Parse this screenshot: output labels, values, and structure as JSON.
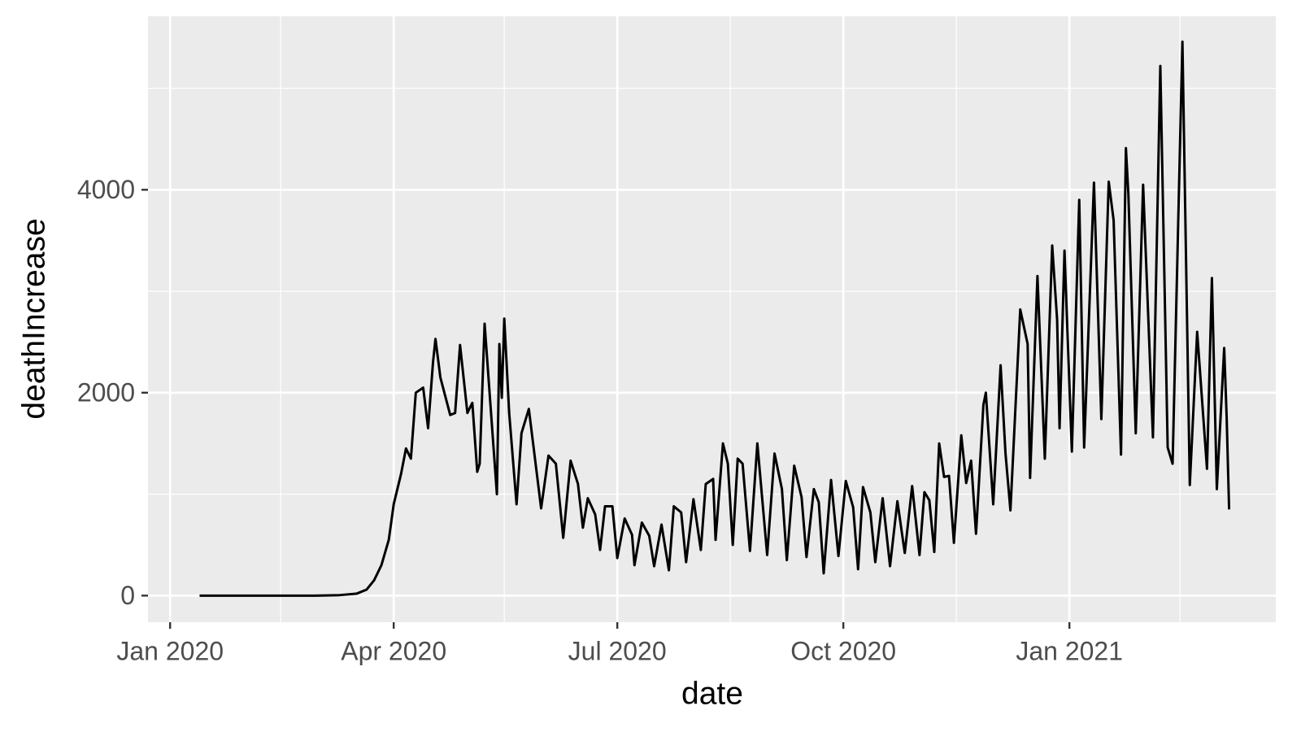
{
  "chart_data": {
    "type": "line",
    "x_label": "date",
    "y_label": "deathIncrease",
    "xlim": [
      "2019-12-23",
      "2021-03-26"
    ],
    "ylim": [
      -262,
      5710
    ],
    "xticks": [
      {
        "value": "2020-01-01",
        "label": "Jan 2020"
      },
      {
        "value": "2020-04-01",
        "label": "Apr 2020"
      },
      {
        "value": "2020-07-01",
        "label": "Jul 2020"
      },
      {
        "value": "2020-10-01",
        "label": "Oct 2020"
      },
      {
        "value": "2021-01-01",
        "label": "Jan 2021"
      }
    ],
    "xminor": [
      "2020-02-15",
      "2020-05-16",
      "2020-08-16",
      "2020-11-16",
      "2021-02-15"
    ],
    "yticks": [
      0,
      2000,
      4000
    ],
    "yminor": [
      1000,
      3000,
      5000
    ],
    "grid": true,
    "x": [
      "2020-01-13",
      "2020-02-29",
      "2020-03-10",
      "2020-03-17",
      "2020-03-21",
      "2020-03-24",
      "2020-03-27",
      "2020-03-30",
      "2020-04-01",
      "2020-04-04",
      "2020-04-06",
      "2020-04-08",
      "2020-04-10",
      "2020-04-13",
      "2020-04-15",
      "2020-04-17",
      "2020-04-18",
      "2020-04-20",
      "2020-04-24",
      "2020-04-26",
      "2020-04-28",
      "2020-05-01",
      "2020-05-03",
      "2020-05-05",
      "2020-05-06",
      "2020-05-08",
      "2020-05-13",
      "2020-05-14",
      "2020-05-15",
      "2020-05-16",
      "2020-05-18",
      "2020-05-21",
      "2020-05-23",
      "2020-05-26",
      "2020-05-31",
      "2020-06-03",
      "2020-06-06",
      "2020-06-09",
      "2020-06-12",
      "2020-06-15",
      "2020-06-17",
      "2020-06-19",
      "2020-06-22",
      "2020-06-24",
      "2020-06-26",
      "2020-06-29",
      "2020-07-01",
      "2020-07-04",
      "2020-07-07",
      "2020-07-08",
      "2020-07-11",
      "2020-07-14",
      "2020-07-16",
      "2020-07-19",
      "2020-07-22",
      "2020-07-24",
      "2020-07-27",
      "2020-07-29",
      "2020-08-01",
      "2020-08-04",
      "2020-08-06",
      "2020-08-09",
      "2020-08-10",
      "2020-08-13",
      "2020-08-15",
      "2020-08-17",
      "2020-08-19",
      "2020-08-21",
      "2020-08-24",
      "2020-08-27",
      "2020-08-31",
      "2020-09-03",
      "2020-09-06",
      "2020-09-08",
      "2020-09-11",
      "2020-09-14",
      "2020-09-16",
      "2020-09-19",
      "2020-09-21",
      "2020-09-23",
      "2020-09-26",
      "2020-09-29",
      "2020-10-02",
      "2020-10-05",
      "2020-10-07",
      "2020-10-09",
      "2020-10-12",
      "2020-10-14",
      "2020-10-17",
      "2020-10-20",
      "2020-10-23",
      "2020-10-26",
      "2020-10-29",
      "2020-11-01",
      "2020-11-03",
      "2020-11-05",
      "2020-11-07",
      "2020-11-09",
      "2020-11-11",
      "2020-11-13",
      "2020-11-15",
      "2020-11-18",
      "2020-11-20",
      "2020-11-22",
      "2020-11-24",
      "2020-11-27",
      "2020-11-28",
      "2020-12-01",
      "2020-12-04",
      "2020-12-06",
      "2020-12-08",
      "2020-12-12",
      "2020-12-15",
      "2020-12-16",
      "2020-12-19",
      "2020-12-22",
      "2020-12-25",
      "2020-12-27",
      "2020-12-28",
      "2020-12-30",
      "2021-01-02",
      "2021-01-05",
      "2021-01-07",
      "2021-01-11",
      "2021-01-14",
      "2021-01-17",
      "2021-01-19",
      "2021-01-22",
      "2021-01-24",
      "2021-01-25",
      "2021-01-28",
      "2021-01-31",
      "2021-02-04",
      "2021-02-07",
      "2021-02-10",
      "2021-02-12",
      "2021-02-16",
      "2021-02-19",
      "2021-02-22",
      "2021-02-26",
      "2021-02-28",
      "2021-03-02",
      "2021-03-05",
      "2021-03-06",
      "2021-03-07"
    ],
    "series": [
      {
        "name": "deathIncrease",
        "color": "#000000",
        "values": [
          0,
          0,
          5,
          20,
          60,
          150,
          300,
          550,
          900,
          1200,
          1450,
          1350,
          2000,
          2050,
          1650,
          2300,
          2530,
          2150,
          1780,
          1800,
          2470,
          1800,
          1900,
          1220,
          1300,
          2680,
          1000,
          2480,
          1950,
          2730,
          1800,
          900,
          1600,
          1840,
          860,
          1380,
          1300,
          570,
          1330,
          1100,
          670,
          960,
          800,
          450,
          880,
          880,
          370,
          760,
          600,
          300,
          720,
          590,
          290,
          700,
          250,
          880,
          820,
          330,
          950,
          450,
          1100,
          1150,
          550,
          1500,
          1300,
          500,
          1350,
          1300,
          440,
          1500,
          400,
          1400,
          1050,
          350,
          1280,
          970,
          380,
          1050,
          920,
          220,
          1140,
          390,
          1130,
          870,
          260,
          1070,
          820,
          330,
          960,
          290,
          930,
          420,
          1080,
          400,
          1020,
          940,
          430,
          1500,
          1170,
          1180,
          520,
          1580,
          1110,
          1330,
          610,
          1880,
          2000,
          900,
          2270,
          1400,
          840,
          2820,
          2480,
          1160,
          3150,
          1350,
          3450,
          2720,
          1650,
          3400,
          1420,
          3900,
          1460,
          4070,
          1740,
          4080,
          3700,
          1390,
          4410,
          3960,
          1600,
          4050,
          1560,
          5220,
          1460,
          1300,
          5460,
          1090,
          2600,
          1250,
          3130,
          1050,
          2440,
          1760,
          850
        ]
      }
    ]
  }
}
